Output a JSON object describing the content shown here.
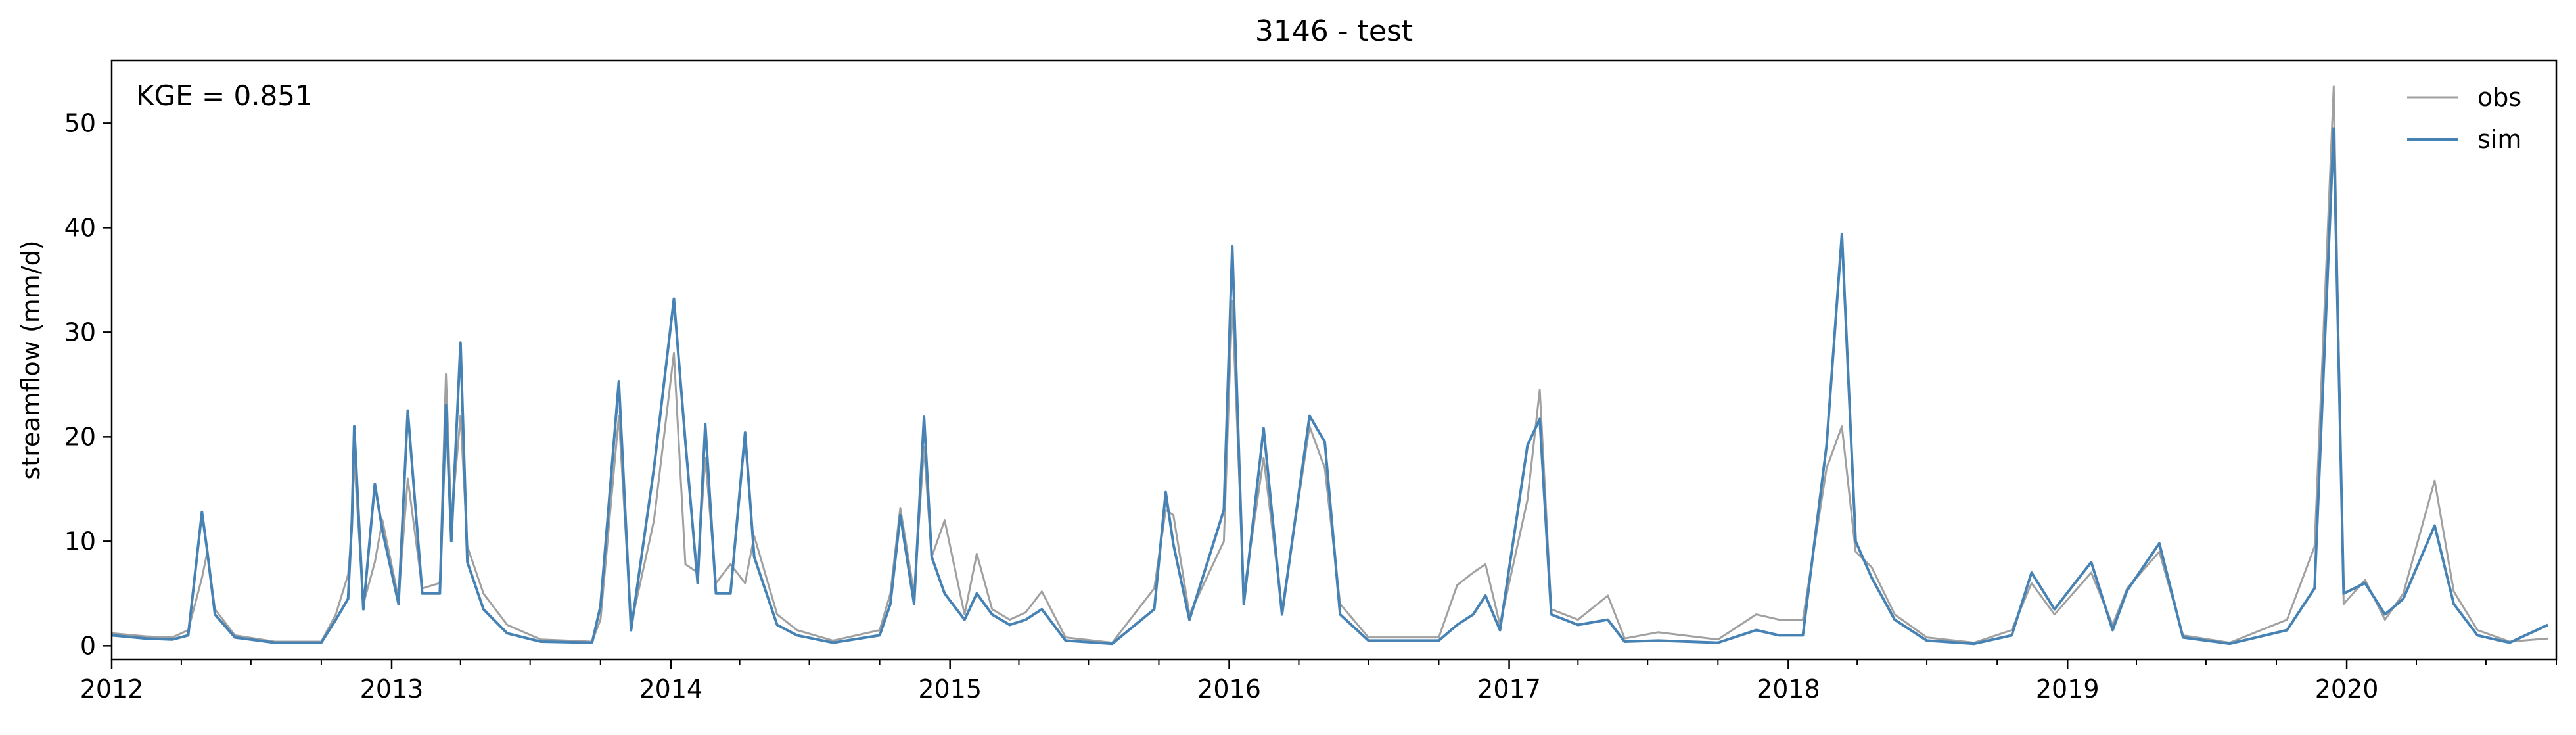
{
  "chart_data": {
    "type": "line",
    "title": "3146 - test",
    "xlabel": "",
    "ylabel": "streamflow (mm/d)",
    "annotation": "KGE = 0.851",
    "xlim": [
      "2012-01-01",
      "2020-10-01"
    ],
    "ylim": [
      -1.3,
      56
    ],
    "x_ticks": [
      "2012",
      "2013",
      "2014",
      "2015",
      "2016",
      "2017",
      "2018",
      "2019",
      "2020"
    ],
    "y_ticks": [
      0,
      10,
      20,
      30,
      40,
      50
    ],
    "grid": false,
    "legend_position": "top-right",
    "series": [
      {
        "name": "obs",
        "color": "#a0a0a0",
        "points": [
          [
            "2012-01-01",
            1.2
          ],
          [
            "2012-02-15",
            0.9
          ],
          [
            "2012-03-20",
            0.8
          ],
          [
            "2012-04-10",
            1.5
          ],
          [
            "2012-04-28",
            6.5
          ],
          [
            "2012-05-05",
            9.0
          ],
          [
            "2012-05-15",
            3.5
          ],
          [
            "2012-06-10",
            1.0
          ],
          [
            "2012-08-01",
            0.4
          ],
          [
            "2012-10-01",
            0.4
          ],
          [
            "2012-10-20",
            3.0
          ],
          [
            "2012-11-05",
            6.8
          ],
          [
            "2012-11-10",
            11.0
          ],
          [
            "2012-11-13",
            18.0
          ],
          [
            "2012-11-25",
            4.0
          ],
          [
            "2012-12-10",
            8.0
          ],
          [
            "2012-12-20",
            12.0
          ],
          [
            "2013-01-10",
            4.5
          ],
          [
            "2013-01-22",
            16.0
          ],
          [
            "2013-02-10",
            5.5
          ],
          [
            "2013-03-05",
            6.0
          ],
          [
            "2013-03-13",
            26.0
          ],
          [
            "2013-03-20",
            12.0
          ],
          [
            "2013-04-01",
            22.0
          ],
          [
            "2013-04-10",
            9.5
          ],
          [
            "2013-05-01",
            5.0
          ],
          [
            "2013-06-01",
            2.0
          ],
          [
            "2013-07-15",
            0.6
          ],
          [
            "2013-09-20",
            0.4
          ],
          [
            "2013-10-01",
            2.5
          ],
          [
            "2013-10-25",
            22.0
          ],
          [
            "2013-11-10",
            2.0
          ],
          [
            "2013-12-10",
            12.0
          ],
          [
            "2014-01-05",
            28.0
          ],
          [
            "2014-01-20",
            7.8
          ],
          [
            "2014-02-05",
            7.0
          ],
          [
            "2014-02-15",
            18.0
          ],
          [
            "2014-03-01",
            6.0
          ],
          [
            "2014-03-20",
            7.8
          ],
          [
            "2014-04-08",
            6.0
          ],
          [
            "2014-04-20",
            10.5
          ],
          [
            "2014-05-20",
            3.0
          ],
          [
            "2014-06-15",
            1.5
          ],
          [
            "2014-08-01",
            0.5
          ],
          [
            "2014-10-01",
            1.5
          ],
          [
            "2014-10-15",
            5.0
          ],
          [
            "2014-10-28",
            13.2
          ],
          [
            "2014-11-15",
            5.0
          ],
          [
            "2014-11-28",
            19.0
          ],
          [
            "2014-12-08",
            8.5
          ],
          [
            "2014-12-25",
            12.0
          ],
          [
            "2015-01-20",
            3.0
          ],
          [
            "2015-02-05",
            8.8
          ],
          [
            "2015-02-25",
            3.5
          ],
          [
            "2015-03-20",
            2.5
          ],
          [
            "2015-04-10",
            3.2
          ],
          [
            "2015-05-01",
            5.2
          ],
          [
            "2015-06-01",
            0.8
          ],
          [
            "2015-08-01",
            0.3
          ],
          [
            "2015-09-25",
            5.5
          ],
          [
            "2015-10-10",
            13.0
          ],
          [
            "2015-10-20",
            12.5
          ],
          [
            "2015-11-10",
            3.0
          ],
          [
            "2015-12-25",
            10.0
          ],
          [
            "2016-01-05",
            33.0
          ],
          [
            "2016-01-20",
            5.0
          ],
          [
            "2016-02-15",
            18.0
          ],
          [
            "2016-03-10",
            3.5
          ],
          [
            "2016-04-15",
            21.0
          ],
          [
            "2016-05-05",
            17.0
          ],
          [
            "2016-05-25",
            4.0
          ],
          [
            "2016-07-01",
            0.8
          ],
          [
            "2016-10-01",
            0.8
          ],
          [
            "2016-10-25",
            5.8
          ],
          [
            "2016-11-15",
            7.0
          ],
          [
            "2016-12-01",
            7.8
          ],
          [
            "2016-12-20",
            2.0
          ],
          [
            "2017-01-25",
            14.0
          ],
          [
            "2017-02-10",
            24.5
          ],
          [
            "2017-02-25",
            3.5
          ],
          [
            "2017-04-01",
            2.5
          ],
          [
            "2017-05-10",
            4.8
          ],
          [
            "2017-06-01",
            0.7
          ],
          [
            "2017-07-15",
            1.3
          ],
          [
            "2017-10-01",
            0.6
          ],
          [
            "2017-11-20",
            3.0
          ],
          [
            "2017-12-20",
            2.5
          ],
          [
            "2018-01-20",
            2.5
          ],
          [
            "2018-02-20",
            17.0
          ],
          [
            "2018-03-12",
            21.0
          ],
          [
            "2018-03-30",
            9.0
          ],
          [
            "2018-04-20",
            7.5
          ],
          [
            "2018-05-20",
            3.0
          ],
          [
            "2018-07-01",
            0.8
          ],
          [
            "2018-09-01",
            0.3
          ],
          [
            "2018-10-20",
            1.5
          ],
          [
            "2018-11-15",
            6.0
          ],
          [
            "2018-12-15",
            3.0
          ],
          [
            "2019-02-01",
            7.0
          ],
          [
            "2019-03-01",
            2.0
          ],
          [
            "2019-03-20",
            5.5
          ],
          [
            "2019-05-01",
            9.0
          ],
          [
            "2019-06-01",
            1.0
          ],
          [
            "2019-08-01",
            0.3
          ],
          [
            "2019-10-15",
            2.5
          ],
          [
            "2019-11-20",
            9.5
          ],
          [
            "2019-12-15",
            53.5
          ],
          [
            "2019-12-28",
            4.0
          ],
          [
            "2020-01-25",
            6.3
          ],
          [
            "2020-02-20",
            2.5
          ],
          [
            "2020-03-15",
            5.0
          ],
          [
            "2020-04-25",
            15.8
          ],
          [
            "2020-05-20",
            5.2
          ],
          [
            "2020-06-20",
            1.5
          ],
          [
            "2020-08-01",
            0.4
          ],
          [
            "2020-09-20",
            0.7
          ]
        ]
      },
      {
        "name": "sim",
        "color": "#4682b4",
        "points": [
          [
            "2012-01-01",
            1.0
          ],
          [
            "2012-02-15",
            0.7
          ],
          [
            "2012-03-20",
            0.6
          ],
          [
            "2012-04-10",
            1.0
          ],
          [
            "2012-04-28",
            12.8
          ],
          [
            "2012-05-05",
            9.0
          ],
          [
            "2012-05-15",
            3.0
          ],
          [
            "2012-06-10",
            0.8
          ],
          [
            "2012-08-01",
            0.3
          ],
          [
            "2012-10-01",
            0.3
          ],
          [
            "2012-10-20",
            2.5
          ],
          [
            "2012-11-05",
            4.5
          ],
          [
            "2012-11-10",
            12.0
          ],
          [
            "2012-11-13",
            21.0
          ],
          [
            "2012-11-25",
            3.5
          ],
          [
            "2012-12-10",
            15.5
          ],
          [
            "2012-12-20",
            11.0
          ],
          [
            "2013-01-10",
            4.0
          ],
          [
            "2013-01-22",
            22.5
          ],
          [
            "2013-02-10",
            5.0
          ],
          [
            "2013-03-05",
            5.0
          ],
          [
            "2013-03-13",
            23.0
          ],
          [
            "2013-03-20",
            10.0
          ],
          [
            "2013-04-01",
            29.0
          ],
          [
            "2013-04-10",
            8.0
          ],
          [
            "2013-05-01",
            3.5
          ],
          [
            "2013-06-01",
            1.2
          ],
          [
            "2013-07-15",
            0.4
          ],
          [
            "2013-09-20",
            0.3
          ],
          [
            "2013-10-01",
            3.8
          ],
          [
            "2013-10-25",
            25.3
          ],
          [
            "2013-11-10",
            1.5
          ],
          [
            "2013-12-10",
            17.0
          ],
          [
            "2014-01-05",
            33.2
          ],
          [
            "2014-01-20",
            19.5
          ],
          [
            "2014-02-05",
            6.0
          ],
          [
            "2014-02-15",
            21.2
          ],
          [
            "2014-03-01",
            5.0
          ],
          [
            "2014-03-20",
            5.0
          ],
          [
            "2014-04-08",
            20.4
          ],
          [
            "2014-04-20",
            8.5
          ],
          [
            "2014-05-20",
            2.0
          ],
          [
            "2014-06-15",
            1.0
          ],
          [
            "2014-08-01",
            0.3
          ],
          [
            "2014-10-01",
            1.0
          ],
          [
            "2014-10-15",
            4.0
          ],
          [
            "2014-10-28",
            12.5
          ],
          [
            "2014-11-15",
            4.0
          ],
          [
            "2014-11-28",
            21.9
          ],
          [
            "2014-12-08",
            8.5
          ],
          [
            "2014-12-25",
            5.0
          ],
          [
            "2015-01-20",
            2.5
          ],
          [
            "2015-02-05",
            5.0
          ],
          [
            "2015-02-25",
            3.0
          ],
          [
            "2015-03-20",
            2.0
          ],
          [
            "2015-04-10",
            2.5
          ],
          [
            "2015-05-01",
            3.5
          ],
          [
            "2015-06-01",
            0.5
          ],
          [
            "2015-08-01",
            0.2
          ],
          [
            "2015-09-25",
            3.5
          ],
          [
            "2015-10-10",
            14.7
          ],
          [
            "2015-10-20",
            9.7
          ],
          [
            "2015-11-10",
            2.5
          ],
          [
            "2015-12-25",
            13.0
          ],
          [
            "2016-01-05",
            38.2
          ],
          [
            "2016-01-20",
            4.0
          ],
          [
            "2016-02-15",
            20.8
          ],
          [
            "2016-03-10",
            3.0
          ],
          [
            "2016-04-15",
            22.0
          ],
          [
            "2016-05-05",
            19.5
          ],
          [
            "2016-05-25",
            3.0
          ],
          [
            "2016-07-01",
            0.5
          ],
          [
            "2016-10-01",
            0.5
          ],
          [
            "2016-10-25",
            2.0
          ],
          [
            "2016-11-15",
            3.0
          ],
          [
            "2016-12-01",
            4.8
          ],
          [
            "2016-12-20",
            1.5
          ],
          [
            "2017-01-25",
            19.2
          ],
          [
            "2017-02-10",
            21.7
          ],
          [
            "2017-02-25",
            3.0
          ],
          [
            "2017-04-01",
            2.0
          ],
          [
            "2017-05-10",
            2.5
          ],
          [
            "2017-06-01",
            0.4
          ],
          [
            "2017-07-15",
            0.5
          ],
          [
            "2017-10-01",
            0.3
          ],
          [
            "2017-11-20",
            1.5
          ],
          [
            "2017-12-20",
            1.0
          ],
          [
            "2018-01-20",
            1.0
          ],
          [
            "2018-02-20",
            19.2
          ],
          [
            "2018-03-12",
            39.4
          ],
          [
            "2018-03-30",
            10.0
          ],
          [
            "2018-04-20",
            6.5
          ],
          [
            "2018-05-20",
            2.5
          ],
          [
            "2018-07-01",
            0.5
          ],
          [
            "2018-09-01",
            0.2
          ],
          [
            "2018-10-20",
            1.0
          ],
          [
            "2018-11-15",
            7.0
          ],
          [
            "2018-12-15",
            3.5
          ],
          [
            "2019-02-01",
            8.0
          ],
          [
            "2019-03-01",
            1.5
          ],
          [
            "2019-03-20",
            5.3
          ],
          [
            "2019-05-01",
            9.8
          ],
          [
            "2019-06-01",
            0.8
          ],
          [
            "2019-08-01",
            0.2
          ],
          [
            "2019-10-15",
            1.5
          ],
          [
            "2019-11-20",
            5.5
          ],
          [
            "2019-12-15",
            49.5
          ],
          [
            "2019-12-28",
            5.0
          ],
          [
            "2020-01-25",
            6.0
          ],
          [
            "2020-02-20",
            3.0
          ],
          [
            "2020-03-15",
            4.5
          ],
          [
            "2020-04-25",
            11.5
          ],
          [
            "2020-05-20",
            4.0
          ],
          [
            "2020-06-20",
            1.0
          ],
          [
            "2020-08-01",
            0.3
          ],
          [
            "2020-09-20",
            2.0
          ]
        ]
      }
    ]
  }
}
